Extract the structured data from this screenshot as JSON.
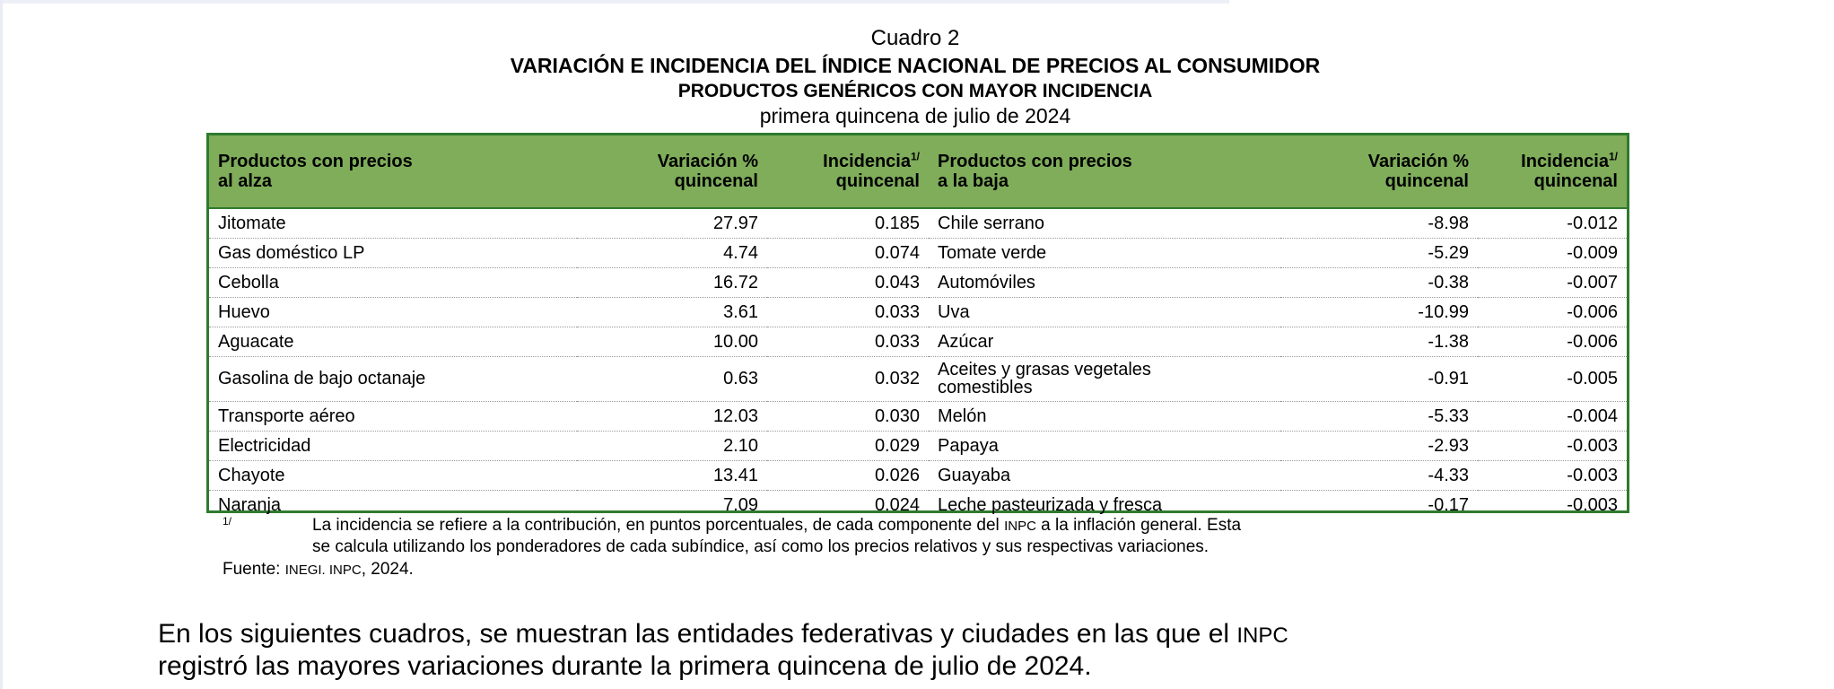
{
  "title": {
    "number": "Cuadro 2",
    "main": "VARIACIÓN E INCIDENCIA DEL ÍNDICE NACIONAL DE PRECIOS AL CONSUMIDOR",
    "sub": "PRODUCTOS GENÉRICOS CON MAYOR INCIDENCIA",
    "period": "primera quincena de julio de 2024"
  },
  "table": {
    "headers": {
      "up_product_1": "Productos con precios",
      "up_product_2": "al alza",
      "up_var_1": "Variación %",
      "up_var_2": "quincenal",
      "up_inc_1": "Incidencia",
      "up_inc_mark": "1/",
      "up_inc_2": "quincenal",
      "down_product_1": "Productos con precios",
      "down_product_2": "a la baja",
      "down_var_1": "Variación %",
      "down_var_2": "quincenal",
      "down_inc_1": "Incidencia",
      "down_inc_mark": "1/",
      "down_inc_2": "quincenal"
    },
    "rows": [
      {
        "up_product": "Jitomate",
        "up_var": "27.97",
        "up_inc": "0.185",
        "down_product": "Chile serrano",
        "down_var": "-8.98",
        "down_inc": "-0.012"
      },
      {
        "up_product": "Gas doméstico LP",
        "up_var": "4.74",
        "up_inc": "0.074",
        "down_product": "Tomate verde",
        "down_var": "-5.29",
        "down_inc": "-0.009"
      },
      {
        "up_product": "Cebolla",
        "up_var": "16.72",
        "up_inc": "0.043",
        "down_product": "Automóviles",
        "down_var": "-0.38",
        "down_inc": "-0.007"
      },
      {
        "up_product": "Huevo",
        "up_var": "3.61",
        "up_inc": "0.033",
        "down_product": "Uva",
        "down_var": "-10.99",
        "down_inc": "-0.006"
      },
      {
        "up_product": "Aguacate",
        "up_var": "10.00",
        "up_inc": "0.033",
        "down_product": "Azúcar",
        "down_var": "-1.38",
        "down_inc": "-0.006"
      },
      {
        "up_product": "Gasolina de bajo octanaje",
        "up_var": "0.63",
        "up_inc": "0.032",
        "down_product_1": "Aceites y grasas vegetales",
        "down_product_2": "comestibles",
        "down_var": "-0.91",
        "down_inc": "-0.005"
      },
      {
        "up_product": "Transporte aéreo",
        "up_var": "12.03",
        "up_inc": "0.030",
        "down_product": "Melón",
        "down_var": "-5.33",
        "down_inc": "-0.004"
      },
      {
        "up_product": "Electricidad",
        "up_var": "2.10",
        "up_inc": "0.029",
        "down_product": "Papaya",
        "down_var": "-2.93",
        "down_inc": "-0.003"
      },
      {
        "up_product": "Chayote",
        "up_var": "13.41",
        "up_inc": "0.026",
        "down_product": "Guayaba",
        "down_var": "-4.33",
        "down_inc": "-0.003"
      },
      {
        "up_product": "Naranja",
        "up_var": "7.09",
        "up_inc": "0.024",
        "down_product": "Leche pasteurizada y fresca",
        "down_var": "-0.17",
        "down_inc": "-0.003"
      }
    ]
  },
  "footnote": {
    "mark": "1/",
    "line1_a": "La incidencia se refiere a la contribución, en puntos porcentuales, de cada componente del ",
    "line1_abbr": "INPC",
    "line1_b": " a la inflación general. Esta",
    "line2": "se calcula utilizando los ponderadores de cada subíndice, así como los precios relativos y sus respectivas variaciones."
  },
  "source": {
    "label": "Fuente: ",
    "org": "INEGI. INPC",
    "year": ", 2024."
  },
  "paragraph": {
    "line1_a": "En los siguientes cuadros, se muestran las entidades federativas y ciudades en las que el ",
    "line1_abbr": "INPC",
    "line2": "registró las mayores variaciones durante la primera quincena de julio de 2024."
  },
  "colors": {
    "header_bg": "#7fad5a",
    "border": "#2f7a2f"
  }
}
